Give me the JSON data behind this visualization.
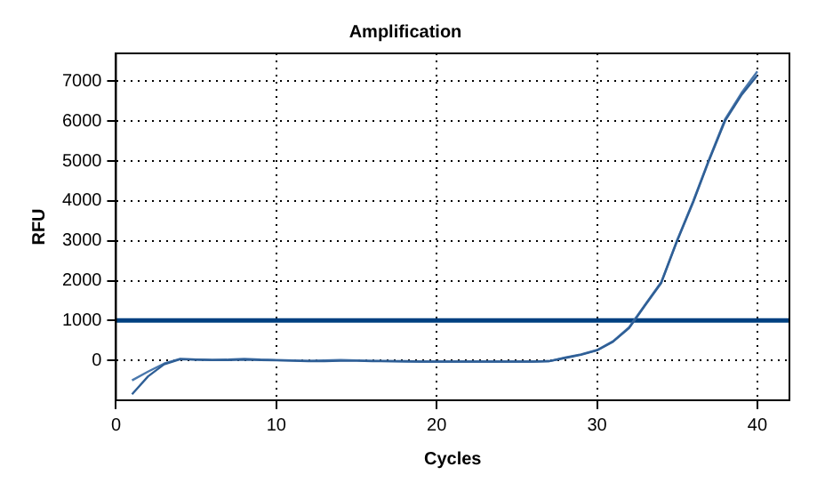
{
  "chart_data": {
    "type": "line",
    "title": "Amplification",
    "xlabel": "Cycles",
    "ylabel": "RFU",
    "x": [
      1,
      2,
      3,
      4,
      5,
      6,
      7,
      8,
      9,
      10,
      11,
      12,
      13,
      14,
      15,
      16,
      17,
      18,
      19,
      20,
      21,
      22,
      23,
      24,
      25,
      26,
      27,
      28,
      29,
      30,
      31,
      32,
      33,
      34,
      35,
      36,
      37,
      38,
      39,
      40
    ],
    "series": [
      {
        "color": "#2f5f96",
        "values": [
          -850,
          -400,
          -100,
          30,
          20,
          10,
          10,
          20,
          10,
          0,
          -10,
          -20,
          -20,
          -10,
          -10,
          -20,
          -20,
          -20,
          -30,
          -30,
          -30,
          -30,
          -30,
          -30,
          -30,
          -30,
          -20,
          60,
          140,
          250,
          470,
          810,
          1380,
          1940,
          3000,
          3970,
          5030,
          6020,
          6650,
          7150
        ]
      },
      {
        "color": "#4a78ad",
        "values": [
          -500,
          -280,
          -80,
          40,
          20,
          10,
          20,
          40,
          20,
          10,
          0,
          -10,
          0,
          10,
          0,
          -10,
          -20,
          -30,
          -30,
          -30,
          -30,
          -30,
          -30,
          -30,
          -30,
          -30,
          -20,
          70,
          150,
          260,
          480,
          830,
          1400,
          1960,
          3020,
          4000,
          5060,
          6060,
          6700,
          7250
        ]
      }
    ],
    "xlim": [
      0,
      42
    ],
    "xticks": [
      0,
      10,
      20,
      30,
      40
    ],
    "ylim": [
      -1000,
      7700
    ],
    "yticks": [
      0,
      1000,
      2000,
      3000,
      4000,
      5000,
      6000,
      7000
    ],
    "ref_lines": [
      {
        "axis": "y",
        "value": 1000,
        "color": "#004080"
      }
    ],
    "grid": true,
    "legend": false,
    "marker": "none",
    "line_style": "solid"
  }
}
